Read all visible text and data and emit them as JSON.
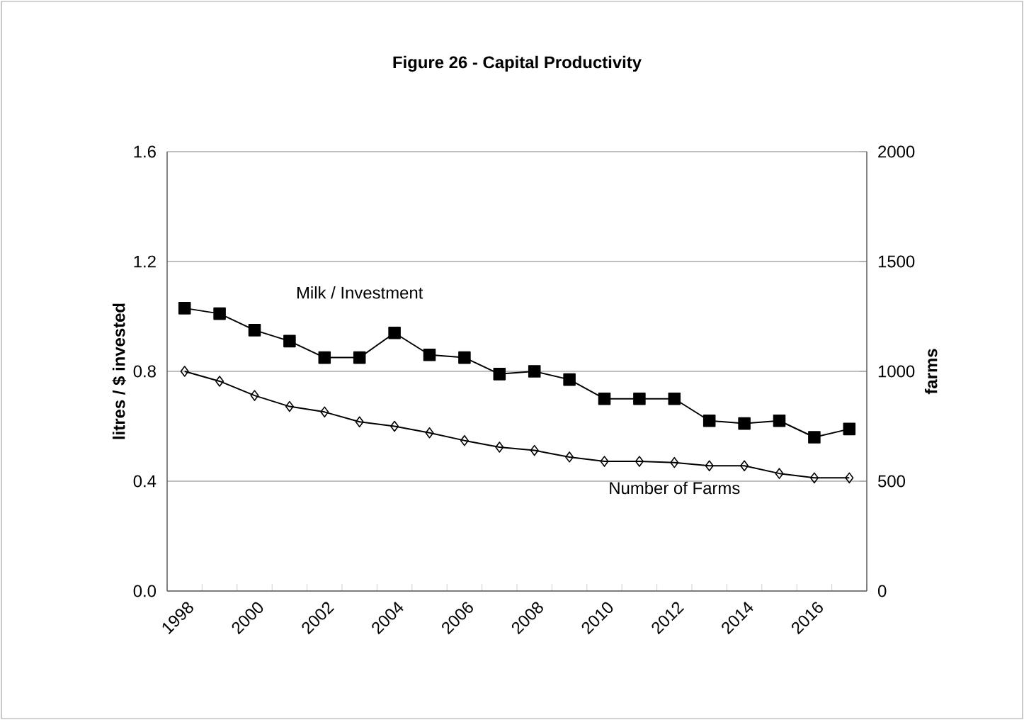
{
  "chart_data": {
    "type": "line",
    "title": "Figure 26 - Capital Productivity",
    "ylabel": "litres / $ invested",
    "y2label": "farms",
    "categories": [
      "1998",
      null,
      "2000",
      null,
      "2002",
      null,
      "2004",
      null,
      "2006",
      null,
      "2008",
      null,
      "2010",
      null,
      "2012",
      null,
      "2014",
      null,
      "2016",
      null
    ],
    "series": [
      {
        "name": "Milk / Investment",
        "color": "#000000",
        "marker": "square",
        "values": [
          1.03,
          1.01,
          0.95,
          0.91,
          0.85,
          0.85,
          0.94,
          0.86,
          0.85,
          0.79,
          0.8,
          0.77,
          0.7,
          0.7,
          0.7,
          0.62,
          0.61,
          0.62,
          0.56,
          0.59
        ]
      },
      {
        "name": "Number  of Farms",
        "color": "#000000",
        "marker": "diamond",
        "axis": "y2",
        "values": [
          1000,
          955,
          890,
          840,
          815,
          770,
          750,
          720,
          685,
          655,
          640,
          610,
          590,
          590,
          585,
          570,
          570,
          535,
          515,
          515
        ]
      }
    ],
    "ylim": [
      0,
      1.6
    ],
    "yticks": [
      {
        "value": 0,
        "label": "0.0"
      },
      {
        "value": 0.4,
        "label": "0.4"
      },
      {
        "value": 0.8,
        "label": "0.8"
      },
      {
        "value": 1.2,
        "label": "1.2"
      },
      {
        "value": 1.6,
        "label": "1.6"
      }
    ],
    "y2lim": [
      0,
      2000
    ],
    "y2ticks": [
      0,
      500,
      1000,
      1500,
      2000
    ],
    "grid": "y",
    "line_style": "solid"
  }
}
